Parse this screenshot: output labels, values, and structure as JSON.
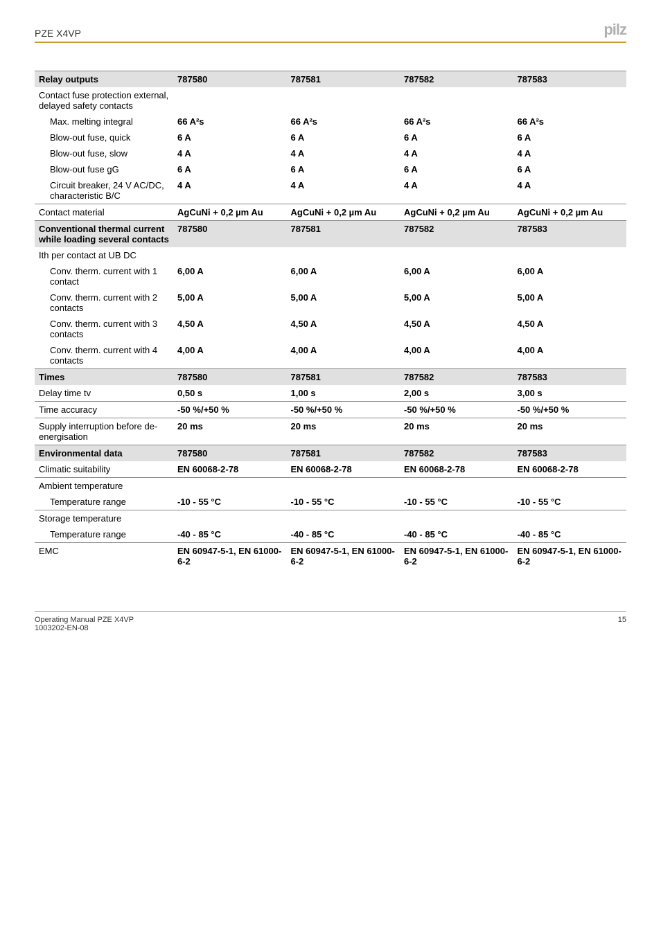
{
  "header": {
    "title": "PZE X4VP",
    "logo": "pilz"
  },
  "footer": {
    "left_line1": "Operating Manual PZE X4VP",
    "left_line2": "1003202-EN-08",
    "page": "15"
  },
  "columns": [
    "787580",
    "787581",
    "787582",
    "787583"
  ],
  "sections": [
    {
      "head": {
        "label": "Relay outputs",
        "vals": [
          "787580",
          "787581",
          "787582",
          "787583"
        ],
        "label_bold": true
      },
      "rows": [
        {
          "label": "Contact fuse protection external, delayed safety contacts",
          "vals": [
            "",
            "",
            "",
            ""
          ],
          "indent": 0,
          "top_border": false
        },
        {
          "label": "Max. melting integral",
          "vals": [
            "66 A²s",
            "66 A²s",
            "66 A²s",
            "66 A²s"
          ],
          "indent": 1,
          "top_border": false
        },
        {
          "label": "Blow-out fuse, quick",
          "vals": [
            "6 A",
            "6 A",
            "6 A",
            "6 A"
          ],
          "indent": 1,
          "top_border": false
        },
        {
          "label": "Blow-out fuse, slow",
          "vals": [
            "4 A",
            "4 A",
            "4 A",
            "4 A"
          ],
          "indent": 1,
          "top_border": false
        },
        {
          "label": "Blow-out fuse gG",
          "vals": [
            "6 A",
            "6 A",
            "6 A",
            "6 A"
          ],
          "indent": 1,
          "top_border": false
        },
        {
          "label": "Circuit breaker, 24 V AC/DC, characteristic B/C",
          "vals": [
            "4 A",
            "4 A",
            "4 A",
            "4 A"
          ],
          "indent": 1,
          "top_border": false
        },
        {
          "label": "Contact material",
          "vals": [
            "AgCuNi + 0,2 µm Au",
            "AgCuNi + 0,2 µm Au",
            "AgCuNi + 0,2 µm Au",
            "AgCuNi + 0,2 µm Au"
          ],
          "indent": 0,
          "top_border": true
        }
      ]
    },
    {
      "head": {
        "label": "Conventional thermal current while loading several contacts",
        "vals": [
          "787580",
          "787581",
          "787582",
          "787583"
        ],
        "label_bold": true
      },
      "rows": [
        {
          "label": "Ith per contact at UB DC",
          "vals": [
            "",
            "",
            "",
            ""
          ],
          "indent": 0,
          "top_border": false
        },
        {
          "label": "Conv. therm. current with 1 contact",
          "vals": [
            "6,00 A",
            "6,00 A",
            "6,00 A",
            "6,00 A"
          ],
          "indent": 1,
          "top_border": false
        },
        {
          "label": "Conv. therm. current with 2 contacts",
          "vals": [
            "5,00 A",
            "5,00 A",
            "5,00 A",
            "5,00 A"
          ],
          "indent": 1,
          "top_border": false
        },
        {
          "label": "Conv. therm. current with 3 contacts",
          "vals": [
            "4,50 A",
            "4,50 A",
            "4,50 A",
            "4,50 A"
          ],
          "indent": 1,
          "top_border": false
        },
        {
          "label": "Conv. therm. current with 4 contacts",
          "vals": [
            "4,00 A",
            "4,00 A",
            "4,00 A",
            "4,00 A"
          ],
          "indent": 1,
          "top_border": false
        }
      ]
    },
    {
      "head": {
        "label": "Times",
        "vals": [
          "787580",
          "787581",
          "787582",
          "787583"
        ],
        "label_bold": true
      },
      "rows": [
        {
          "label": "Delay time tv",
          "vals": [
            "0,50 s",
            "1,00 s",
            "2,00 s",
            "3,00 s"
          ],
          "indent": 0,
          "top_border": false
        },
        {
          "label": "Time accuracy",
          "vals": [
            "-50 %/+50 %",
            "-50 %/+50 %",
            "-50 %/+50 %",
            "-50 %/+50 %"
          ],
          "indent": 0,
          "top_border": true
        },
        {
          "label": "Supply interruption before de-energisation",
          "vals": [
            "20 ms",
            "20 ms",
            "20 ms",
            "20 ms"
          ],
          "indent": 0,
          "top_border": true
        }
      ]
    },
    {
      "head": {
        "label": "Environmental data",
        "vals": [
          "787580",
          "787581",
          "787582",
          "787583"
        ],
        "label_bold": true
      },
      "rows": [
        {
          "label": "Climatic suitability",
          "vals": [
            "EN 60068-2-78",
            "EN 60068-2-78",
            "EN 60068-2-78",
            "EN 60068-2-78"
          ],
          "indent": 0,
          "top_border": false
        },
        {
          "label": "Ambient temperature",
          "vals": [
            "",
            "",
            "",
            ""
          ],
          "indent": 0,
          "top_border": true
        },
        {
          "label": "Temperature range",
          "vals": [
            "-10 - 55 °C",
            "-10 - 55 °C",
            "-10 - 55 °C",
            "-10 - 55 °C"
          ],
          "indent": 1,
          "top_border": false
        },
        {
          "label": "Storage temperature",
          "vals": [
            "",
            "",
            "",
            ""
          ],
          "indent": 0,
          "top_border": true
        },
        {
          "label": "Temperature range",
          "vals": [
            "-40 - 85 °C",
            "-40 - 85 °C",
            "-40 - 85 °C",
            "-40 - 85 °C"
          ],
          "indent": 1,
          "top_border": false
        },
        {
          "label": "EMC",
          "vals": [
            "EN 60947-5-1, EN 61000-6-2",
            "EN 60947-5-1, EN 61000-6-2",
            "EN 60947-5-1, EN 61000-6-2",
            "EN 60947-5-1, EN 61000-6-2"
          ],
          "indent": 0,
          "top_border": true
        }
      ]
    }
  ]
}
